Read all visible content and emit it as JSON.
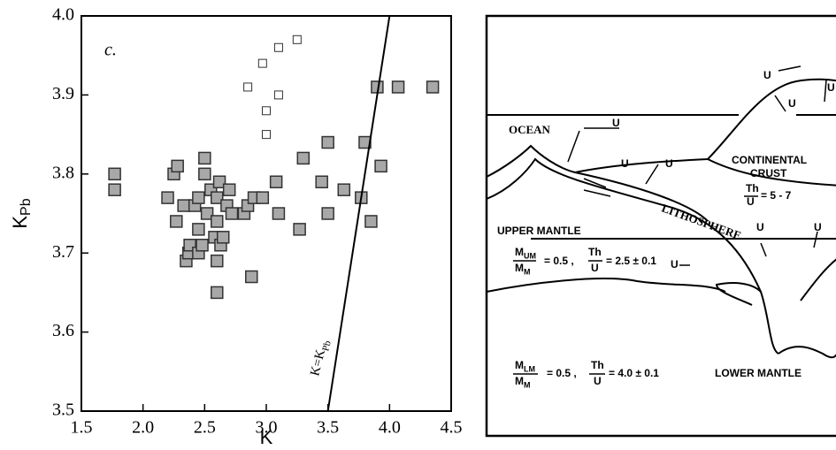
{
  "chart_data": {
    "type": "scatter",
    "panel_label": "c.",
    "xlabel": "K",
    "ylabel": "K",
    "ylabel_subscript": "Pb",
    "xlim": [
      1.5,
      4.5
    ],
    "ylim": [
      3.5,
      4.0
    ],
    "xticks": [
      1.5,
      {
        "value": 2,
        "label": "2.0"
      },
      2.5,
      {
        "value": 3,
        "label": "3.0"
      },
      3.5,
      {
        "value": 4,
        "label": "4.0"
      },
      4.5
    ],
    "yticks": [
      3.5,
      3.6,
      3.7,
      3.8,
      3.9,
      {
        "value": 4,
        "label": "4.0"
      }
    ],
    "series": [
      {
        "marker": "filled",
        "color": "#a8a8a8",
        "x": [
          1.77,
          1.77,
          2.2,
          2.25,
          2.28,
          2.27,
          2.33,
          2.35,
          2.37,
          2.38,
          2.42,
          2.45,
          2.45,
          2.45,
          2.48,
          2.5,
          2.5,
          2.52,
          2.55,
          2.58,
          2.6,
          2.6,
          2.6,
          2.6,
          2.62,
          2.63,
          2.65,
          2.68,
          2.7,
          2.72,
          2.82,
          2.85,
          2.88,
          2.9,
          2.97,
          3.08,
          3.1,
          3.27,
          3.3,
          3.45,
          3.5,
          3.5,
          3.63,
          3.77,
          3.8,
          3.85,
          3.9,
          3.93,
          4.07,
          4.35
        ],
        "y": [
          3.8,
          3.78,
          3.77,
          3.8,
          3.81,
          3.74,
          3.76,
          3.69,
          3.7,
          3.71,
          3.76,
          3.73,
          3.77,
          3.7,
          3.71,
          3.82,
          3.8,
          3.75,
          3.78,
          3.72,
          3.69,
          3.65,
          3.74,
          3.77,
          3.79,
          3.71,
          3.72,
          3.76,
          3.78,
          3.75,
          3.75,
          3.76,
          3.67,
          3.77,
          3.77,
          3.79,
          3.75,
          3.73,
          3.82,
          3.79,
          3.84,
          3.75,
          3.78,
          3.77,
          3.84,
          3.74,
          3.91,
          3.81,
          3.91,
          3.91
        ]
      },
      {
        "marker": "open",
        "color": "#ffffff",
        "x": [
          2.85,
          2.97,
          3.0,
          3.0,
          3.1,
          3.1,
          3.25
        ],
        "y": [
          3.91,
          3.94,
          3.88,
          3.85,
          3.96,
          3.9,
          3.97
        ]
      }
    ],
    "reference_line": {
      "x": [
        3.5,
        4.0
      ],
      "y": [
        3.5,
        4.0
      ],
      "label": "K=K",
      "label_subscript": "Pb"
    }
  },
  "diagram": {
    "labels": [
      "OCEAN",
      "U",
      "U",
      "U",
      "LITHOSPHERE",
      "CONTINENTAL",
      "CRUST",
      "Th",
      "U",
      "= 5 - 7",
      "U",
      "U",
      "U",
      "UPPER MANTLE",
      "M",
      "UM",
      "M",
      "M",
      "= 0.5 ,",
      "Th",
      "U",
      "= 2.5 ± 0.1",
      "U",
      "U",
      "U",
      "M",
      "LM",
      "M",
      "M",
      "= 0.5 ,",
      "Th",
      "U",
      "= 4.0 ± 0.1",
      "LOWER MANTLE"
    ]
  }
}
